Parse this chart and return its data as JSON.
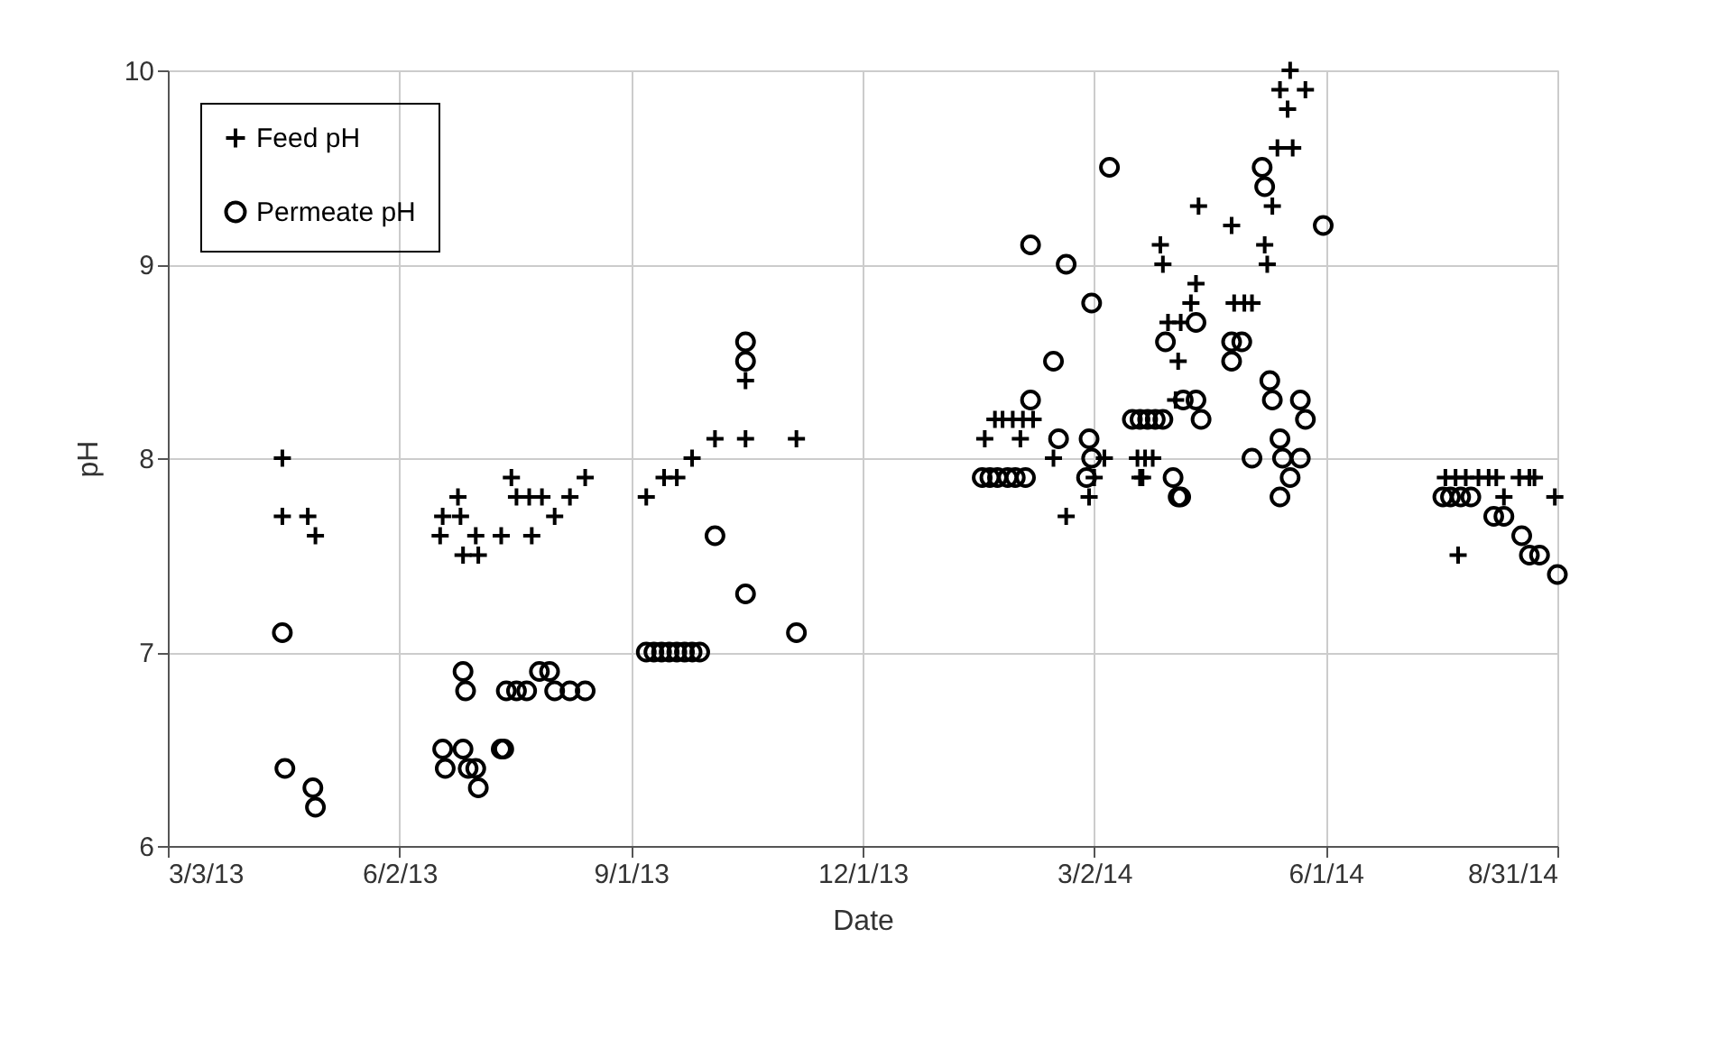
{
  "chart_data": {
    "type": "scatter",
    "xlabel": "Date",
    "ylabel": "pH",
    "legend": "top left",
    "grid": true,
    "xlim": [
      "2013-03-03",
      "2014-08-31"
    ],
    "xticks": [
      {
        "value": "2013-03-03",
        "label": "3/3/13"
      },
      {
        "value": "2013-06-02",
        "label": "6/2/13"
      },
      {
        "value": "2013-09-01",
        "label": "9/1/13"
      },
      {
        "value": "2013-12-01",
        "label": "12/1/13"
      },
      {
        "value": "2014-03-02",
        "label": "3/2/14"
      },
      {
        "value": "2014-06-01",
        "label": "6/1/14"
      },
      {
        "value": "2014-08-31",
        "label": "8/31/14"
      }
    ],
    "ylim": [
      6,
      10
    ],
    "yticks": [
      6,
      7,
      8,
      9,
      10
    ],
    "series": [
      {
        "name": "Feed pH",
        "color": "#000000",
        "marker": "cross",
        "x": [
          "2013-04-17",
          "2013-04-17",
          "2013-04-27",
          "2013-04-30",
          "2013-06-19",
          "2013-06-18",
          "2013-06-25",
          "2013-06-26",
          "2013-06-27",
          "2013-07-02",
          "2013-07-03",
          "2013-07-12",
          "2013-07-16",
          "2013-07-18",
          "2013-07-23",
          "2013-07-24",
          "2013-07-28",
          "2013-08-02",
          "2013-08-08",
          "2013-08-14",
          "2013-09-07",
          "2013-09-14",
          "2013-09-19",
          "2013-09-25",
          "2013-10-04",
          "2013-10-16",
          "2013-10-16",
          "2013-11-05",
          "2014-01-18",
          "2014-01-22",
          "2014-01-25",
          "2014-01-29",
          "2014-02-02",
          "2014-02-06",
          "2014-02-01",
          "2014-02-14",
          "2014-02-19",
          "2014-02-28",
          "2014-03-02",
          "2014-03-06",
          "2014-03-19",
          "2014-03-20",
          "2014-03-22",
          "2014-03-25",
          "2014-03-21",
          "2014-03-28",
          "2014-03-29",
          "2014-03-31",
          "2014-04-05",
          "2014-04-04",
          "2014-04-09",
          "2014-04-11",
          "2014-04-03",
          "2014-04-12",
          "2014-04-25",
          "2014-04-26",
          "2014-04-30",
          "2014-05-03",
          "2014-05-08",
          "2014-05-09",
          "2014-05-11",
          "2014-05-13",
          "2014-05-19",
          "2014-05-17",
          "2014-05-14",
          "2014-05-18",
          "2014-05-24",
          "2014-07-18",
          "2014-07-22",
          "2014-07-26",
          "2014-07-31",
          "2014-08-04",
          "2014-08-07",
          "2014-08-16",
          "2014-08-20",
          "2014-08-22",
          "2014-07-23",
          "2014-08-10",
          "2014-08-30"
        ],
        "values": [
          8.0,
          7.7,
          7.7,
          7.6,
          7.7,
          7.6,
          7.8,
          7.7,
          7.5,
          7.6,
          7.5,
          7.6,
          7.9,
          7.8,
          7.8,
          7.6,
          7.8,
          7.7,
          7.8,
          7.9,
          7.8,
          7.9,
          7.9,
          8.0,
          8.1,
          8.1,
          8.4,
          8.1,
          8.1,
          8.2,
          8.2,
          8.2,
          8.2,
          8.2,
          8.1,
          8.0,
          7.7,
          7.8,
          7.9,
          8.0,
          8.0,
          7.9,
          8.0,
          8.0,
          7.9,
          9.1,
          9.0,
          8.7,
          8.7,
          8.5,
          8.8,
          8.9,
          8.3,
          9.3,
          9.2,
          8.8,
          8.8,
          8.8,
          9.1,
          9.0,
          9.3,
          9.6,
          9.6,
          9.8,
          9.9,
          10.0,
          9.9,
          7.9,
          7.9,
          7.9,
          7.9,
          7.9,
          7.9,
          7.9,
          7.9,
          7.9,
          7.5,
          7.8,
          7.8
        ]
      },
      {
        "name": "Permeate pH",
        "color": "#000000",
        "marker": "circle",
        "x": [
          "2013-04-17",
          "2013-04-18",
          "2013-04-29",
          "2013-04-30",
          "2013-06-19",
          "2013-06-20",
          "2013-06-27",
          "2013-06-27",
          "2013-06-28",
          "2013-06-29",
          "2013-07-02",
          "2013-07-03",
          "2013-07-12",
          "2013-07-13",
          "2013-07-14",
          "2013-07-18",
          "2013-07-22",
          "2013-07-27",
          "2013-07-31",
          "2013-08-02",
          "2013-08-08",
          "2013-08-14",
          "2013-09-07",
          "2013-09-10",
          "2013-09-13",
          "2013-09-16",
          "2013-09-19",
          "2013-09-22",
          "2013-09-25",
          "2013-09-28",
          "2013-10-04",
          "2013-10-16",
          "2013-10-16",
          "2013-10-16",
          "2013-11-05",
          "2014-01-17",
          "2014-01-20",
          "2014-01-23",
          "2014-01-27",
          "2014-01-30",
          "2014-02-03",
          "2014-02-05",
          "2014-02-05",
          "2014-02-14",
          "2014-02-19",
          "2014-02-16",
          "2014-02-28",
          "2014-03-01",
          "2014-02-27",
          "2014-03-01",
          "2014-03-08",
          "2014-03-17",
          "2014-03-20",
          "2014-03-23",
          "2014-03-26",
          "2014-03-29",
          "2014-03-30",
          "2014-04-02",
          "2014-04-04",
          "2014-04-05",
          "2014-04-06",
          "2014-04-11",
          "2014-04-11",
          "2014-04-13",
          "2014-04-25",
          "2014-04-25",
          "2014-04-29",
          "2014-05-03",
          "2014-05-07",
          "2014-05-08",
          "2014-05-10",
          "2014-05-11",
          "2014-05-14",
          "2014-05-14",
          "2014-05-15",
          "2014-05-18",
          "2014-05-22",
          "2014-05-22",
          "2014-05-24",
          "2014-05-31",
          "2014-07-17",
          "2014-07-20",
          "2014-07-24",
          "2014-07-28",
          "2014-08-06",
          "2014-08-10",
          "2014-08-17",
          "2014-08-20",
          "2014-08-24",
          "2014-08-31"
        ],
        "values": [
          7.1,
          6.4,
          6.3,
          6.2,
          6.5,
          6.4,
          6.5,
          6.9,
          6.8,
          6.4,
          6.4,
          6.3,
          6.5,
          6.5,
          6.8,
          6.8,
          6.8,
          6.9,
          6.9,
          6.8,
          6.8,
          6.8,
          7.0,
          7.0,
          7.0,
          7.0,
          7.0,
          7.0,
          7.0,
          7.0,
          7.6,
          7.3,
          8.5,
          8.6,
          7.1,
          7.9,
          7.9,
          7.9,
          7.9,
          7.9,
          7.9,
          8.3,
          9.1,
          8.5,
          9.0,
          8.1,
          8.1,
          8.0,
          7.9,
          8.8,
          9.5,
          8.2,
          8.2,
          8.2,
          8.2,
          8.2,
          8.6,
          7.9,
          7.8,
          7.8,
          8.3,
          8.3,
          8.7,
          8.2,
          8.6,
          8.5,
          8.6,
          8.0,
          9.5,
          9.4,
          8.4,
          8.3,
          8.1,
          7.8,
          8.0,
          7.9,
          8.0,
          8.3,
          8.2,
          9.2,
          7.8,
          7.8,
          7.8,
          7.8,
          7.7,
          7.7,
          7.6,
          7.5,
          7.5,
          7.4
        ]
      }
    ]
  }
}
